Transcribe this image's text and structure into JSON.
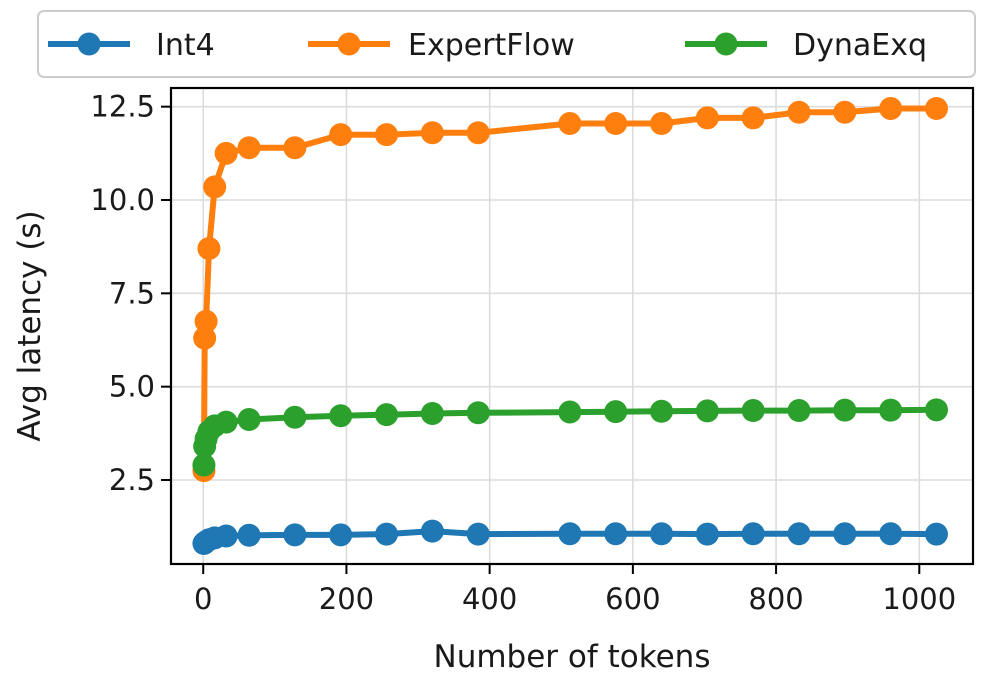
{
  "chart_data": {
    "type": "line",
    "xlabel": "Number of tokens",
    "ylabel": "Avg latency (s)",
    "xlim": [
      -45,
      1075
    ],
    "ylim": [
      0.25,
      13.0
    ],
    "xticks": [
      0,
      200,
      400,
      600,
      800,
      1000
    ],
    "yticks": [
      2.5,
      5.0,
      7.5,
      10.0,
      12.5
    ],
    "xtick_labels": [
      "0",
      "200",
      "400",
      "600",
      "800",
      "1000"
    ],
    "ytick_labels": [
      "2.5",
      "5.0",
      "7.5",
      "10.0",
      "12.5"
    ],
    "grid": true,
    "legend_position": "top",
    "series": [
      {
        "name": "Int4",
        "color": "#1f77b4",
        "points": [
          [
            1,
            0.8
          ],
          [
            2,
            0.82
          ],
          [
            4,
            0.85
          ],
          [
            8,
            0.9
          ],
          [
            16,
            0.95
          ],
          [
            32,
            1.0
          ],
          [
            64,
            1.02
          ],
          [
            128,
            1.03
          ],
          [
            192,
            1.03
          ],
          [
            256,
            1.05
          ],
          [
            320,
            1.13
          ],
          [
            384,
            1.05
          ],
          [
            512,
            1.06
          ],
          [
            576,
            1.06
          ],
          [
            640,
            1.06
          ],
          [
            704,
            1.05
          ],
          [
            768,
            1.06
          ],
          [
            832,
            1.06
          ],
          [
            896,
            1.06
          ],
          [
            960,
            1.06
          ],
          [
            1024,
            1.05
          ]
        ]
      },
      {
        "name": "ExpertFlow",
        "color": "#ff7f0e",
        "points": [
          [
            1,
            2.75
          ],
          [
            2,
            6.3
          ],
          [
            4,
            6.75
          ],
          [
            8,
            8.7
          ],
          [
            16,
            10.35
          ],
          [
            32,
            11.25
          ],
          [
            64,
            11.4
          ],
          [
            128,
            11.4
          ],
          [
            192,
            11.75
          ],
          [
            256,
            11.75
          ],
          [
            320,
            11.8
          ],
          [
            384,
            11.8
          ],
          [
            512,
            12.05
          ],
          [
            576,
            12.05
          ],
          [
            640,
            12.05
          ],
          [
            704,
            12.2
          ],
          [
            768,
            12.2
          ],
          [
            832,
            12.35
          ],
          [
            896,
            12.35
          ],
          [
            960,
            12.45
          ],
          [
            1024,
            12.45
          ]
        ]
      },
      {
        "name": "DynaExq",
        "color": "#2ca02c",
        "points": [
          [
            1,
            2.9
          ],
          [
            2,
            3.4
          ],
          [
            4,
            3.6
          ],
          [
            8,
            3.8
          ],
          [
            16,
            3.95
          ],
          [
            32,
            4.05
          ],
          [
            64,
            4.12
          ],
          [
            128,
            4.18
          ],
          [
            192,
            4.22
          ],
          [
            256,
            4.25
          ],
          [
            320,
            4.28
          ],
          [
            384,
            4.3
          ],
          [
            512,
            4.32
          ],
          [
            576,
            4.33
          ],
          [
            640,
            4.34
          ],
          [
            704,
            4.35
          ],
          [
            768,
            4.36
          ],
          [
            832,
            4.36
          ],
          [
            896,
            4.37
          ],
          [
            960,
            4.37
          ],
          [
            1024,
            4.38
          ]
        ]
      }
    ]
  }
}
